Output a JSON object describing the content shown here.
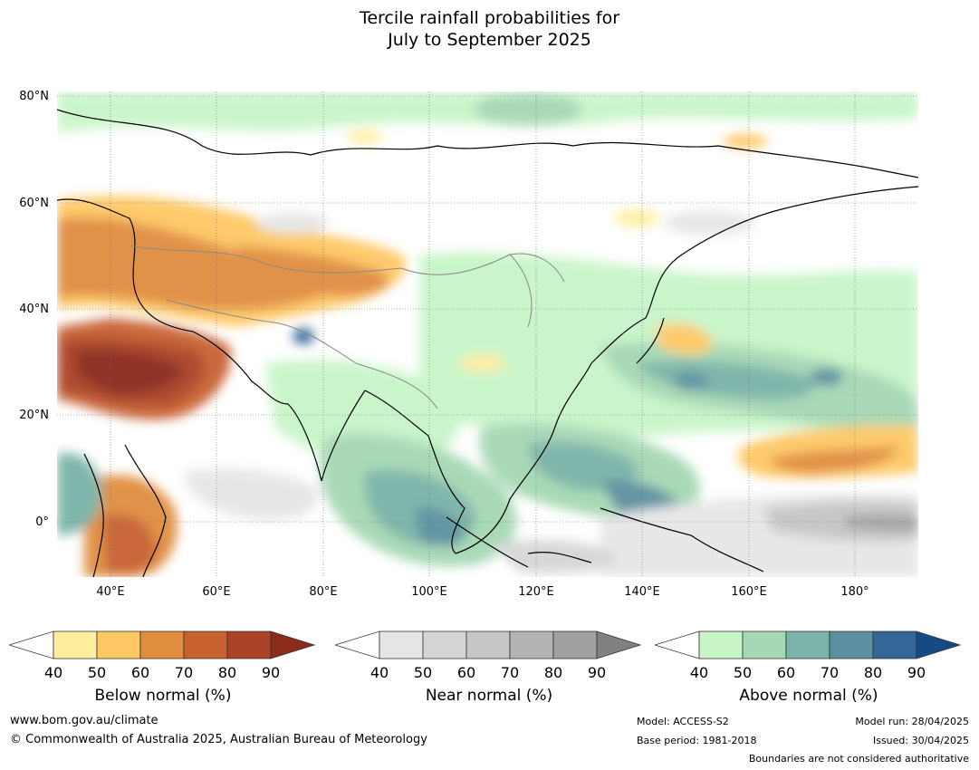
{
  "title": {
    "line1": "Tercile rainfall probabilities for",
    "line2": "July to September 2025"
  },
  "map": {
    "lat_labels": [
      "80°N",
      "60°N",
      "40°N",
      "20°N",
      "0°"
    ],
    "lon_labels": [
      "40°E",
      "60°E",
      "80°E",
      "100°E",
      "120°E",
      "140°E",
      "160°E",
      "180°"
    ]
  },
  "colorbars": [
    {
      "title": "Below normal (%)",
      "ticks": [
        "40",
        "50",
        "60",
        "70",
        "80",
        "90"
      ],
      "colors": [
        "#ffeea0",
        "#fec865",
        "#e08d40",
        "#c86030",
        "#aa4225"
      ],
      "over_color": "#8b2b1a"
    },
    {
      "title": "Near normal (%)",
      "ticks": [
        "40",
        "50",
        "60",
        "70",
        "80",
        "90"
      ],
      "colors": [
        "#e6e6e6",
        "#d6d6d6",
        "#c6c6c6",
        "#b4b4b4",
        "#a0a0a0"
      ],
      "over_color": "#808080"
    },
    {
      "title": "Above normal (%)",
      "ticks": [
        "40",
        "50",
        "60",
        "70",
        "80",
        "90"
      ],
      "colors": [
        "#c8f5c8",
        "#a5d8b4",
        "#7ab3a7",
        "#5b90a0",
        "#336699"
      ],
      "over_color": "#144b85"
    }
  ],
  "footer": {
    "website": "www.bom.gov.au/climate",
    "copyright": "© Commonwealth of Australia 2025, Australian Bureau of Meteorology",
    "model": "Model: ACCESS-S2",
    "base_period": "Base period: 1981-2018",
    "model_run": "Model run: 28/04/2025",
    "issued": "Issued: 30/04/2025",
    "disclaimer": "Boundaries are not considered authoritative"
  }
}
